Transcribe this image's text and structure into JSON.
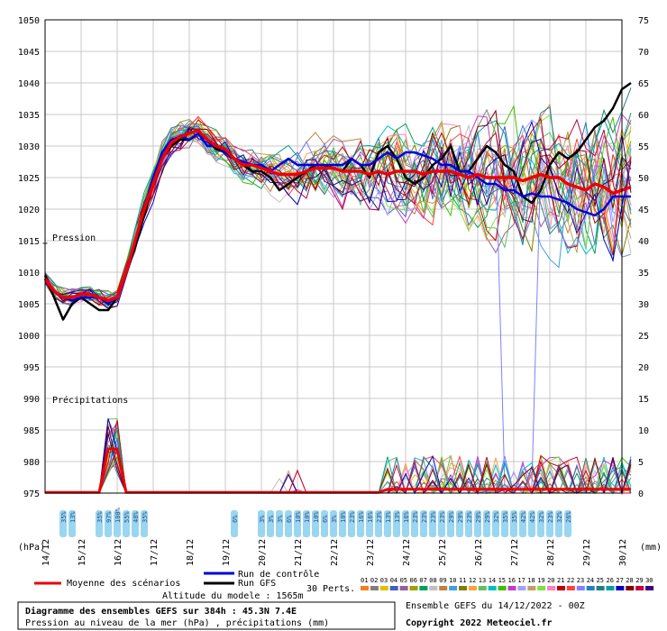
{
  "chart_data": {
    "type": "line",
    "title": "Diagramme des ensembles GEFS sur 384h : 45.3N 7.4E",
    "subtitle": "Pression au niveau de la mer (hPa) , précipitations (mm)",
    "model_info": "Ensemble GEFS du 14/12/2022 - 00Z",
    "copyright": "Copyright 2022 Meteociel.fr",
    "altitude": "Altitude du modele : 1565m",
    "label_pressure": "Pression",
    "label_precip": "Précipitations",
    "left_unit": "(hPa)",
    "right_unit": "(mm)",
    "perts_label": "30 Perts.",
    "legend": {
      "mean": "Moyenne des scénarios",
      "control": "Run de contrôle",
      "gfs": "Run GFS"
    },
    "grid": true,
    "y_left": {
      "min": 975,
      "max": 1050,
      "ticks": [
        975,
        980,
        985,
        990,
        995,
        1000,
        1005,
        1010,
        1015,
        1020,
        1025,
        1030,
        1035,
        1040,
        1045,
        1050
      ]
    },
    "y_right": {
      "ticks": [
        0,
        5,
        10,
        15,
        20,
        25,
        30,
        35,
        40,
        45,
        50,
        55,
        60,
        65,
        70,
        75
      ]
    },
    "x": {
      "start_day": 14,
      "end_day": 30,
      "step_hours": 6,
      "tick_labels": [
        "14/12",
        "15/12",
        "16/12",
        "17/12",
        "18/12",
        "19/12",
        "20/12",
        "21/12",
        "22/12",
        "23/12",
        "24/12",
        "25/12",
        "26/12",
        "27/12",
        "28/12",
        "29/12",
        "30/12"
      ]
    },
    "series_pressure": [
      {
        "name": "Run GFS",
        "color": "#000000",
        "width": 2.5,
        "values": [
          [
            0,
            1009.5
          ],
          [
            0.25,
            1006
          ],
          [
            0.5,
            1002.5
          ],
          [
            0.75,
            1005
          ],
          [
            1,
            1006
          ],
          [
            1.25,
            1005
          ],
          [
            1.5,
            1004
          ],
          [
            1.75,
            1004
          ],
          [
            2,
            1006
          ],
          [
            2.25,
            1010
          ],
          [
            2.5,
            1014
          ],
          [
            2.75,
            1019
          ],
          [
            3,
            1024
          ],
          [
            3.25,
            1028
          ],
          [
            3.5,
            1030
          ],
          [
            3.75,
            1031
          ],
          [
            4,
            1031
          ],
          [
            4.25,
            1032
          ],
          [
            4.5,
            1031
          ],
          [
            4.75,
            1029.5
          ],
          [
            5,
            1029
          ],
          [
            5.25,
            1028
          ],
          [
            5.5,
            1027
          ],
          [
            5.75,
            1026
          ],
          [
            6,
            1026
          ],
          [
            6.25,
            1025
          ],
          [
            6.5,
            1023
          ],
          [
            6.75,
            1024
          ],
          [
            7,
            1025
          ],
          [
            7.25,
            1026
          ],
          [
            7.5,
            1027
          ],
          [
            7.75,
            1027
          ],
          [
            8,
            1026.5
          ],
          [
            8.25,
            1026
          ],
          [
            8.5,
            1028
          ],
          [
            8.75,
            1027
          ],
          [
            9,
            1025
          ],
          [
            9.25,
            1029
          ],
          [
            9.5,
            1030
          ],
          [
            9.75,
            1028
          ],
          [
            10,
            1025
          ],
          [
            10.25,
            1024
          ],
          [
            10.5,
            1025
          ],
          [
            10.75,
            1027
          ],
          [
            11,
            1028
          ],
          [
            11.25,
            1030
          ],
          [
            11.5,
            1026
          ],
          [
            11.75,
            1026
          ],
          [
            12,
            1028
          ],
          [
            12.25,
            1030
          ],
          [
            12.5,
            1029
          ],
          [
            12.75,
            1027
          ],
          [
            13,
            1026
          ],
          [
            13.25,
            1022
          ],
          [
            13.5,
            1021
          ],
          [
            13.75,
            1023
          ],
          [
            14,
            1027
          ],
          [
            14.25,
            1029
          ],
          [
            14.5,
            1028
          ],
          [
            14.75,
            1029
          ],
          [
            15,
            1031
          ],
          [
            15.25,
            1033
          ],
          [
            15.5,
            1034
          ],
          [
            15.75,
            1036
          ],
          [
            16,
            1039
          ],
          [
            16.25,
            1040
          ]
        ]
      },
      {
        "name": "Run de contrôle",
        "color": "#0000dd",
        "width": 2.5,
        "values": [
          [
            0,
            1009
          ],
          [
            0.25,
            1007
          ],
          [
            0.5,
            1006
          ],
          [
            0.75,
            1005.5
          ],
          [
            1,
            1006
          ],
          [
            1.25,
            1006
          ],
          [
            1.5,
            1006
          ],
          [
            1.75,
            1005
          ],
          [
            2,
            1006
          ],
          [
            2.25,
            1010
          ],
          [
            2.5,
            1015
          ],
          [
            2.75,
            1020
          ],
          [
            3,
            1025
          ],
          [
            3.25,
            1029
          ],
          [
            3.5,
            1031
          ],
          [
            3.75,
            1031.5
          ],
          [
            4,
            1031
          ],
          [
            4.25,
            1032
          ],
          [
            4.5,
            1030
          ],
          [
            4.75,
            1030
          ],
          [
            5,
            1029
          ],
          [
            5.25,
            1028
          ],
          [
            5.5,
            1027.5
          ],
          [
            5.75,
            1027
          ],
          [
            6,
            1027
          ],
          [
            6.25,
            1026
          ],
          [
            6.5,
            1027
          ],
          [
            6.75,
            1028
          ],
          [
            7,
            1027
          ],
          [
            7.25,
            1027
          ],
          [
            7.5,
            1027
          ],
          [
            7.75,
            1027
          ],
          [
            8,
            1027
          ],
          [
            8.25,
            1027
          ],
          [
            8.5,
            1028
          ],
          [
            8.75,
            1027
          ],
          [
            9,
            1027
          ],
          [
            9.25,
            1028
          ],
          [
            9.5,
            1029
          ],
          [
            9.75,
            1028
          ],
          [
            10,
            1029
          ],
          [
            10.25,
            1029
          ],
          [
            10.5,
            1028.5
          ],
          [
            10.75,
            1028
          ],
          [
            11,
            1027
          ],
          [
            11.25,
            1027
          ],
          [
            11.5,
            1026
          ],
          [
            11.75,
            1026
          ],
          [
            12,
            1025
          ],
          [
            12.25,
            1024
          ],
          [
            12.5,
            1024
          ],
          [
            12.75,
            1023
          ],
          [
            13,
            1023
          ],
          [
            13.25,
            1022
          ],
          [
            13.5,
            1022.5
          ],
          [
            13.75,
            1022
          ],
          [
            14,
            1022
          ],
          [
            14.25,
            1021.5
          ],
          [
            14.5,
            1021
          ],
          [
            14.75,
            1020
          ],
          [
            15,
            1019.5
          ],
          [
            15.25,
            1019
          ],
          [
            15.5,
            1020
          ],
          [
            15.75,
            1022
          ],
          [
            16,
            1022
          ],
          [
            16.25,
            1022
          ]
        ]
      },
      {
        "name": "Moyenne des scénarios",
        "color": "#ee0000",
        "width": 3.5,
        "values": [
          [
            0,
            1009
          ],
          [
            0.25,
            1007
          ],
          [
            0.5,
            1006
          ],
          [
            0.75,
            1006
          ],
          [
            1,
            1006.5
          ],
          [
            1.25,
            1006.5
          ],
          [
            1.5,
            1006
          ],
          [
            1.75,
            1005.5
          ],
          [
            2,
            1006
          ],
          [
            2.25,
            1010
          ],
          [
            2.5,
            1015
          ],
          [
            2.75,
            1020
          ],
          [
            3,
            1024
          ],
          [
            3.25,
            1028
          ],
          [
            3.5,
            1030.5
          ],
          [
            3.75,
            1031.5
          ],
          [
            4,
            1032
          ],
          [
            4.25,
            1032.5
          ],
          [
            4.5,
            1031
          ],
          [
            4.75,
            1030
          ],
          [
            5,
            1029.5
          ],
          [
            5.25,
            1028
          ],
          [
            5.5,
            1027
          ],
          [
            5.75,
            1027
          ],
          [
            6,
            1026.5
          ],
          [
            6.25,
            1026
          ],
          [
            6.5,
            1025.5
          ],
          [
            6.75,
            1025.5
          ],
          [
            7,
            1025.5
          ],
          [
            7.25,
            1026
          ],
          [
            7.5,
            1026.5
          ],
          [
            7.75,
            1026.5
          ],
          [
            8,
            1026.5
          ],
          [
            8.25,
            1026
          ],
          [
            8.5,
            1026
          ],
          [
            8.75,
            1026
          ],
          [
            9,
            1025.5
          ],
          [
            9.25,
            1026
          ],
          [
            9.5,
            1025.5
          ],
          [
            9.75,
            1026
          ],
          [
            10,
            1026
          ],
          [
            10.25,
            1026
          ],
          [
            10.5,
            1025.5
          ],
          [
            10.75,
            1026
          ],
          [
            11,
            1026
          ],
          [
            11.25,
            1026
          ],
          [
            11.5,
            1025.5
          ],
          [
            11.75,
            1025
          ],
          [
            12,
            1025.5
          ],
          [
            12.25,
            1025
          ],
          [
            12.5,
            1025
          ],
          [
            12.75,
            1025
          ],
          [
            13,
            1025
          ],
          [
            13.25,
            1024.5
          ],
          [
            13.5,
            1025
          ],
          [
            13.75,
            1025.5
          ],
          [
            14,
            1025
          ],
          [
            14.25,
            1025
          ],
          [
            14.5,
            1024
          ],
          [
            14.75,
            1023.5
          ],
          [
            15,
            1023
          ],
          [
            15.25,
            1024
          ],
          [
            15.5,
            1023.5
          ],
          [
            15.75,
            1022.5
          ],
          [
            16,
            1023
          ],
          [
            16.25,
            1023.5
          ]
        ]
      }
    ],
    "precip_labels_left": [
      "35%",
      "13%",
      "35%",
      "97%",
      "100%",
      "55%",
      "48%",
      "35%",
      "6%",
      "3%",
      "3%",
      "3%",
      "6%",
      "10%",
      "10%",
      "10%",
      "6%"
    ],
    "precip_labels_right": [
      "3%",
      "10%",
      "23%",
      "16%",
      "16%",
      "23%",
      "13%",
      "13%",
      "16%",
      "23%",
      "23%",
      "23%",
      "23%",
      "29%",
      "29%",
      "23%",
      "29%",
      "29%",
      "32%",
      "35%",
      "35%",
      "42%",
      "42%",
      "32%",
      "23%",
      "32%",
      "26%"
    ],
    "member_codes": [
      "01",
      "02",
      "03",
      "04",
      "05",
      "06",
      "07",
      "08",
      "09",
      "10",
      "11",
      "12",
      "13",
      "14",
      "15",
      "16",
      "17",
      "18",
      "19",
      "20",
      "21",
      "22",
      "23",
      "24",
      "25",
      "26",
      "27",
      "28",
      "29",
      "30"
    ],
    "member_colors": [
      "#f08020",
      "#808080",
      "#e0c000",
      "#4060c0",
      "#9060a0",
      "#a0a000",
      "#00a060",
      "#c0c0c0",
      "#c08040",
      "#40a0e0",
      "#808000",
      "#ffa040",
      "#60c060",
      "#00c0c0",
      "#40c000",
      "#c040c0",
      "#a0a0ff",
      "#c0a060",
      "#80e040",
      "#ff80c0",
      "#c00000",
      "#ff4040",
      "#8080ff",
      "#2080c0",
      "#208080",
      "#00a0a0",
      "#0000c0",
      "#800000",
      "#c00040",
      "#400080"
    ]
  }
}
